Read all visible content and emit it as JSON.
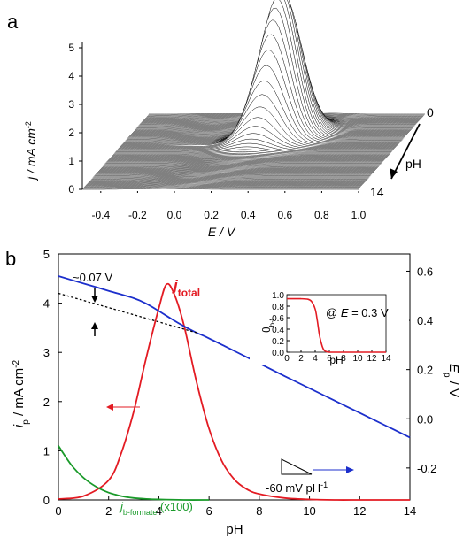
{
  "figure": {
    "panel_a_label": "a",
    "panel_b_label": "b"
  },
  "chart_data": [
    {
      "type": "area",
      "panel": "a",
      "description_visible": "waterfall of voltammograms vs pH",
      "xlabel": "E / V",
      "ylabel": "j / mA cm",
      "ylabel_sup": "-2",
      "zlabel": "pH",
      "z_start_label": "0",
      "z_end_label": "14",
      "x_ticks": [
        "-0.4",
        "-0.2",
        "0.0",
        "0.2",
        "0.4",
        "0.6",
        "0.8",
        "1.0"
      ],
      "y_ticks": [
        "0",
        "1",
        "2",
        "3",
        "4",
        "5"
      ],
      "xlim": [
        -0.5,
        1.0
      ],
      "ylim": [
        0,
        5.3
      ],
      "zlim": [
        0,
        14
      ],
      "n_curves": 80,
      "colors": {
        "line": "#000000",
        "fill": "#ffffff"
      }
    },
    {
      "type": "line",
      "panel": "b",
      "xlabel": "pH",
      "ylabel_left": "i",
      "ylabel_left_sub": "p",
      "ylabel_left_rest": " / mA cm",
      "ylabel_left_sup": "-2",
      "ylabel_right": "E",
      "ylabel_right_sub": "p",
      "ylabel_right_rest": " / V",
      "xlim": [
        0,
        14
      ],
      "ylim_left": [
        0,
        5
      ],
      "ylim_right": [
        -0.33,
        0.67
      ],
      "x_ticks": [
        "0",
        "2",
        "4",
        "6",
        "8",
        "10",
        "12",
        "14"
      ],
      "y_ticks_left": [
        "0",
        "1",
        "2",
        "3",
        "4",
        "5"
      ],
      "y_ticks_right": [
        "-0.2",
        "0.0",
        "0.2",
        "0.4",
        "0.6"
      ],
      "series": [
        {
          "name": "j_total",
          "label_main": "j",
          "label_sub": "total",
          "color": "#e31b23",
          "x": [
            0,
            1,
            2,
            2.5,
            3,
            3.5,
            4,
            4.3,
            4.6,
            5,
            5.5,
            6,
            6.5,
            7,
            7.5,
            8,
            9,
            10,
            11,
            12,
            13,
            14
          ],
          "y": [
            0.02,
            0.08,
            0.4,
            0.95,
            1.8,
            2.9,
            3.9,
            4.38,
            4.2,
            3.55,
            2.4,
            1.45,
            0.8,
            0.42,
            0.22,
            0.12,
            0.04,
            0.01,
            0,
            0,
            0,
            0
          ]
        },
        {
          "name": "j_b-formate (x100)",
          "label_main": "j",
          "label_sub": "b-formate",
          "label_suffix": " (x100)",
          "color": "#1a9a2a",
          "x": [
            0,
            0.5,
            1,
            1.5,
            2,
            2.5,
            3,
            3.5,
            4,
            5,
            6
          ],
          "y": [
            1.1,
            0.72,
            0.45,
            0.27,
            0.15,
            0.08,
            0.04,
            0.02,
            0.01,
            0,
            0
          ]
        },
        {
          "name": "E_p",
          "color": "#1c2fcc",
          "axis": "right",
          "x": [
            0,
            1,
            2,
            3,
            3.5,
            4,
            4.5,
            5,
            5.5,
            6,
            7,
            8,
            9,
            10,
            11,
            12,
            13,
            14
          ],
          "y": [
            0.58,
            0.55,
            0.52,
            0.49,
            0.468,
            0.438,
            0.406,
            0.376,
            0.35,
            0.327,
            0.276,
            0.225,
            0.174,
            0.124,
            0.074,
            0.024,
            -0.026,
            -0.076
          ]
        },
        {
          "name": "E_p extrapolated",
          "color": "#000000",
          "axis": "right",
          "dashed": true,
          "x": [
            0,
            5.5
          ],
          "y": [
            0.51,
            0.35
          ]
        }
      ],
      "annotations": {
        "gap_label": "~0.07 V",
        "slope_label": "-60 mV pH",
        "slope_sup": "-1"
      },
      "inset": {
        "ylabel": "θ",
        "ylabel_sub": "b-f",
        "xlabel": "pH",
        "label_prefix": "@ ",
        "label_var": "E",
        "label_rest": " = 0.3 V",
        "x_ticks": [
          "0",
          "2",
          "4",
          "6",
          "8",
          "10",
          "12",
          "14"
        ],
        "y_ticks": [
          "0.0",
          "0.2",
          "0.4",
          "0.6",
          "0.8",
          "1.0"
        ],
        "xlim": [
          0,
          14
        ],
        "ylim": [
          0,
          1.0
        ],
        "color": "#e31b23",
        "x": [
          0,
          2,
          3,
          3.5,
          4,
          4.3,
          4.6,
          5,
          5.3,
          5.6,
          6,
          7,
          14
        ],
        "y": [
          0.93,
          0.93,
          0.92,
          0.88,
          0.75,
          0.55,
          0.3,
          0.1,
          0.03,
          0.01,
          0,
          0,
          0
        ]
      }
    }
  ]
}
